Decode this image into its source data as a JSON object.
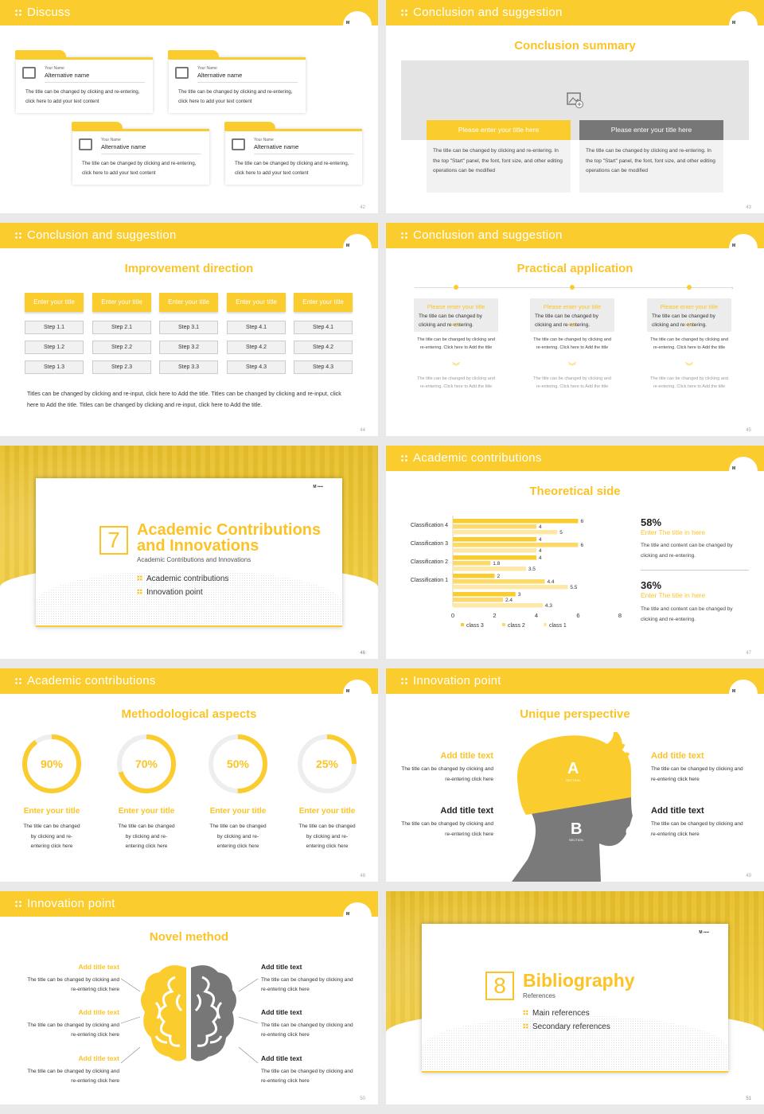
{
  "common": {
    "your_name": "Your Name",
    "alt_name": "Alternative name",
    "card_text": "The title can be changed by clicking and re-entering, click here to add your text content",
    "logo_text": "M"
  },
  "s42": {
    "header": "Discuss",
    "page": "42"
  },
  "s43": {
    "header": "Conclusion and suggestion",
    "title": "Conclusion summary",
    "left_title": "Please enter your title here",
    "right_title": "Please enter your title here",
    "left_text": "The title can be changed by clicking and re-entering. In the top \"Start\" panel, the font, font size, and other editing operations can be modified",
    "right_text": "The title can be changed by clicking and re-entering. In the top \"Start\" panel, the font, font size, and other editing operations can be modified",
    "page": "43"
  },
  "s44": {
    "header": "Conclusion and suggestion",
    "title": "Improvement direction",
    "col_head": "Enter your title",
    "cols": [
      [
        "Step 1.1",
        "Step 1.2",
        "Step 1.3"
      ],
      [
        "Step 2.1",
        "Step 2.2",
        "Step 2.3"
      ],
      [
        "Step 3.1",
        "Step 3.2",
        "Step 3.3"
      ],
      [
        "Step 4.1",
        "Step 4.2",
        "Step 4.3"
      ],
      [
        "Step 4.1",
        "Step 4.2",
        "Step 4.3"
      ]
    ],
    "body": "Titles can be changed by clicking and re-input, click here to Add the title. Titles can be changed by clicking and re-input, click here to Add the title. Titles can be changed by clicking and re-input, click here to Add the title.",
    "page": "44"
  },
  "s45": {
    "header": "Conclusion and suggestion",
    "title": "Practical application",
    "box_title": "Please enter your title",
    "box_text": "The title can be changed by clicking and re-entering.",
    "small_text": "The title can be changed by clicking and re-entering. Click here to Add the title",
    "page": "45"
  },
  "s46": {
    "number": "7",
    "title1": "Academic Contributions",
    "title2": "and Innovations",
    "subtitle": "Academic Contributions and Innovations",
    "items": [
      "Academic contributions",
      "Innovation point"
    ],
    "page": "46"
  },
  "s47": {
    "header": "Academic contributions",
    "title": "Theoretical side",
    "stat1": "58%",
    "stat1_title": "Enter The title in here",
    "stat1_text": "The title and content can be changed by clicking and re-entering.",
    "stat2": "36%",
    "stat2_title": "Enter The title in here",
    "stat2_text": "The title and content can be changed by clicking and re-entering.",
    "page": "47"
  },
  "chart_data": {
    "type": "bar",
    "orientation": "horizontal",
    "categories": [
      "Classification 4",
      "Classification 3",
      "Classification 2",
      "Classification 1",
      ""
    ],
    "series": [
      {
        "name": "class 3",
        "values": [
          6,
          4,
          4,
          2,
          3
        ],
        "color": "#fbcc2e"
      },
      {
        "name": "class 2",
        "values": [
          4,
          6,
          1.8,
          4.4,
          2.4
        ],
        "color": "#fcd96a"
      },
      {
        "name": "class 1",
        "values": [
          5,
          4,
          3.5,
          5.5,
          4.3
        ],
        "color": "#fde8a8"
      }
    ],
    "xlim": [
      0,
      8
    ],
    "xticks": [
      "0",
      "2",
      "4",
      "6",
      "8"
    ],
    "legend": "bottom"
  },
  "s48": {
    "header": "Academic contributions",
    "title": "Methodological aspects",
    "items": [
      {
        "pct": "90%",
        "value": 90,
        "title": "Enter your title"
      },
      {
        "pct": "70%",
        "value": 70,
        "title": "Enter your title"
      },
      {
        "pct": "50%",
        "value": 50,
        "title": "Enter your title"
      },
      {
        "pct": "25%",
        "value": 25,
        "title": "Enter your title"
      }
    ],
    "text": "The title can be changed by clicking and re-entering click here",
    "page": "48"
  },
  "s49": {
    "header": "Innovation point",
    "title": "Unique perspective",
    "a": "A",
    "b": "B",
    "section": "SECTION",
    "items": [
      {
        "title": "Add title text",
        "text": "The title can be changed by clicking and re-entering click here"
      },
      {
        "title": "Add title text",
        "text": "The title can be changed by clicking and re-entering click here"
      },
      {
        "title": "Add title text",
        "text": "The title can be changed by clicking and re-entering click here"
      },
      {
        "title": "Add title text",
        "text": "The title can be changed by clicking and re-entering click here"
      }
    ],
    "page": "49"
  },
  "s50": {
    "header": "Innovation point",
    "title": "Novel method",
    "item_title": "Add title text",
    "item_text": "The title can be changed by clicking and re-entering click here",
    "page": "50"
  },
  "s51": {
    "number": "8",
    "title": "Bibliography",
    "subtitle": "References",
    "items": [
      "Main references",
      "Secondary references"
    ],
    "page": "51"
  }
}
